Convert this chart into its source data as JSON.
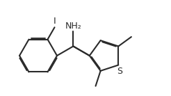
{
  "background": "#ffffff",
  "line_color": "#2a2a2a",
  "line_width": 1.5,
  "figsize": [
    2.46,
    1.38
  ],
  "dpi": 100,
  "NH2_label": "NH₂",
  "S_label": "S",
  "I_label": "I",
  "label_fontsize": 9.0,
  "I_fontsize": 9.5
}
